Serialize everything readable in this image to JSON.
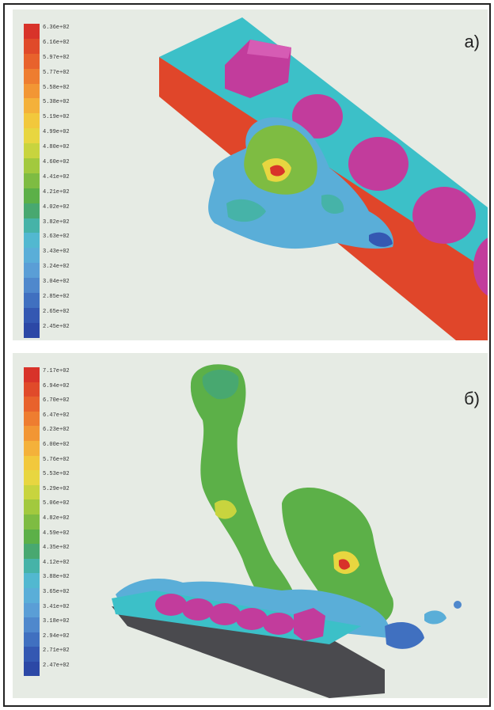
{
  "panels": [
    {
      "label": "а)",
      "legend": {
        "values": [
          "6.36e+02",
          "6.16e+02",
          "5.97e+02",
          "5.77e+02",
          "5.58e+02",
          "5.38e+02",
          "5.19e+02",
          "4.99e+02",
          "4.80e+02",
          "4.60e+02",
          "4.41e+02",
          "4.21e+02",
          "4.02e+02",
          "3.82e+02",
          "3.63e+02",
          "3.43e+02",
          "3.24e+02",
          "3.04e+02",
          "2.85e+02",
          "2.65e+02",
          "2.45e+02"
        ],
        "colors": [
          "#d8332a",
          "#e04a2a",
          "#e8622c",
          "#ee7d30",
          "#f29634",
          "#f4b13a",
          "#f2c83c",
          "#e8d640",
          "#c8d43e",
          "#a2c93e",
          "#7ebc42",
          "#5cb048",
          "#48a870",
          "#46b3a8",
          "#52b8d0",
          "#5aaed8",
          "#5a9ed6",
          "#4f88cc",
          "#4070c0",
          "#3458b2",
          "#2c48a6"
        ]
      }
    },
    {
      "label": "б)",
      "legend": {
        "values": [
          "7.17e+02",
          "6.94e+02",
          "6.70e+02",
          "6.47e+02",
          "6.23e+02",
          "6.00e+02",
          "5.76e+02",
          "5.53e+02",
          "5.29e+02",
          "5.06e+02",
          "4.82e+02",
          "4.59e+02",
          "4.35e+02",
          "4.12e+02",
          "3.88e+02",
          "3.65e+02",
          "3.41e+02",
          "3.18e+02",
          "2.94e+02",
          "2.71e+02",
          "2.47e+02"
        ],
        "colors": [
          "#d8332a",
          "#e04a2a",
          "#e8622c",
          "#ee7d30",
          "#f29634",
          "#f4b13a",
          "#f2c83c",
          "#e8d640",
          "#c8d43e",
          "#a2c93e",
          "#7ebc42",
          "#5cb048",
          "#48a870",
          "#46b3a8",
          "#52b8d0",
          "#5aaed8",
          "#5a9ed6",
          "#4f88cc",
          "#4070c0",
          "#3458b2",
          "#2c48a6"
        ]
      }
    }
  ],
  "scene_colors": {
    "cyan": "#3cc0c8",
    "red": "#e0462a",
    "magenta": "#c23c9c",
    "dark": "#4a4a4e",
    "green": "#6cc05a",
    "blue": "#4aa8d8",
    "yellow": "#e6d44a",
    "hot": "#d8332a"
  }
}
